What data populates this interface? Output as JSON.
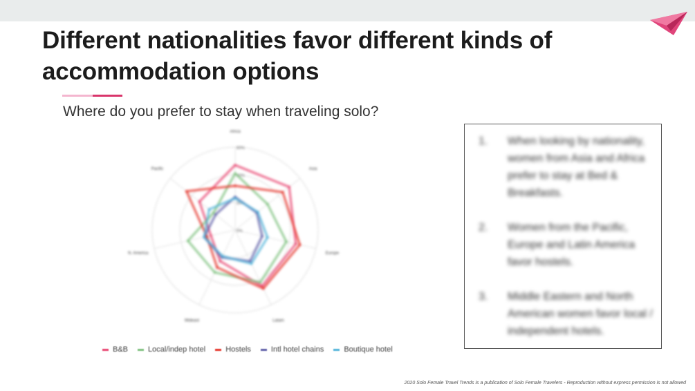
{
  "slide": {
    "title": "Different nationalities favor different kinds of accommodation options",
    "question": "Where do you prefer to stay when traveling solo?",
    "footer": "2020 Solo Female Travel Trends is a publication of Solo Female Travelers - Reproduction without express permission is not allowed",
    "accent_color": "#d9356b",
    "logo_icon": "paper-plane-icon",
    "notes": [
      {
        "num": "1.",
        "text": "When looking by nationality, women from Asia and Africa prefer to stay at Bed & Breakfasts."
      },
      {
        "num": "2.",
        "text": "Women from the Pacific, Europe and Latin America favor hostels."
      },
      {
        "num": "3.",
        "text": "Middle Eastern and North American women favor local / independent hotels."
      }
    ]
  },
  "chart_data": {
    "type": "radar",
    "axes": [
      "Africa",
      "Asia",
      "Europe",
      "Latam",
      "Mideast",
      "N. America",
      "Pacific"
    ],
    "rlim": [
      0,
      60
    ],
    "rticks": [
      "0%",
      "20%",
      "40%",
      "60%"
    ],
    "legend_position": "bottom",
    "series": [
      {
        "name": "B&B",
        "color": "#e8436f",
        "values": [
          47,
          50,
          45,
          45,
          25,
          18,
          33
        ]
      },
      {
        "name": "Local/indep hotel",
        "color": "#7cc07c",
        "values": [
          41,
          30,
          38,
          42,
          34,
          35,
          20
        ]
      },
      {
        "name": "Hostels",
        "color": "#e6332a",
        "values": [
          32,
          44,
          48,
          47,
          30,
          21,
          45
        ]
      },
      {
        "name": "Intl hotel chains",
        "color": "#5f5fa8",
        "values": [
          24,
          20,
          20,
          25,
          22,
          23,
          18
        ]
      },
      {
        "name": "Boutique hotel",
        "color": "#4fb3d9",
        "values": [
          23,
          21,
          24,
          27,
          21,
          23,
          24
        ]
      }
    ]
  }
}
